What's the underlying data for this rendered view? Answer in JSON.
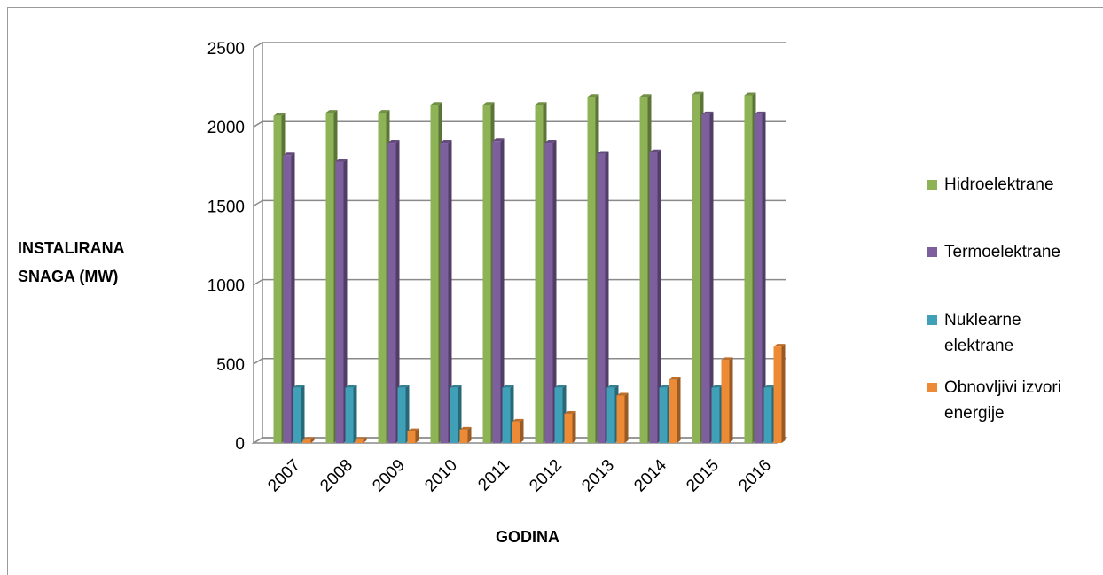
{
  "chart_data": {
    "type": "bar",
    "title": "",
    "ylabel": [
      "INSTALIRANA",
      "SNAGA (MW)"
    ],
    "xlabel": "GODINA",
    "ylim": [
      0,
      2500
    ],
    "yticks": [
      0,
      500,
      1000,
      1500,
      2000,
      2500
    ],
    "grid": true,
    "legend_position": "right",
    "categories": [
      "2007",
      "2008",
      "2009",
      "2010",
      "2011",
      "2012",
      "2013",
      "2014",
      "2015",
      "2016"
    ],
    "series": [
      {
        "name": "Hidroelektrane",
        "legend_lines": [
          "Hidroelektrane"
        ],
        "color": "#8db356",
        "values": [
          2070,
          2090,
          2090,
          2140,
          2140,
          2140,
          2190,
          2190,
          2205,
          2200
        ]
      },
      {
        "name": "Termoelektrane",
        "legend_lines": [
          "Termoelektrane"
        ],
        "color": "#7d5f9e",
        "values": [
          1820,
          1780,
          1900,
          1900,
          1910,
          1900,
          1830,
          1840,
          2080,
          2080
        ]
      },
      {
        "name": "Nuklearne elektrane",
        "legend_lines": [
          "Nuklearne",
          "elektrane"
        ],
        "color": "#3fa0b8",
        "values": [
          350,
          350,
          350,
          350,
          350,
          350,
          350,
          350,
          350,
          350
        ]
      },
      {
        "name": "Obnovljivi izvori energije",
        "legend_lines": [
          "Obnovljivi izvori",
          "energije"
        ],
        "color": "#ec8a36",
        "values": [
          20,
          20,
          75,
          85,
          135,
          185,
          300,
          400,
          525,
          610
        ]
      }
    ]
  }
}
